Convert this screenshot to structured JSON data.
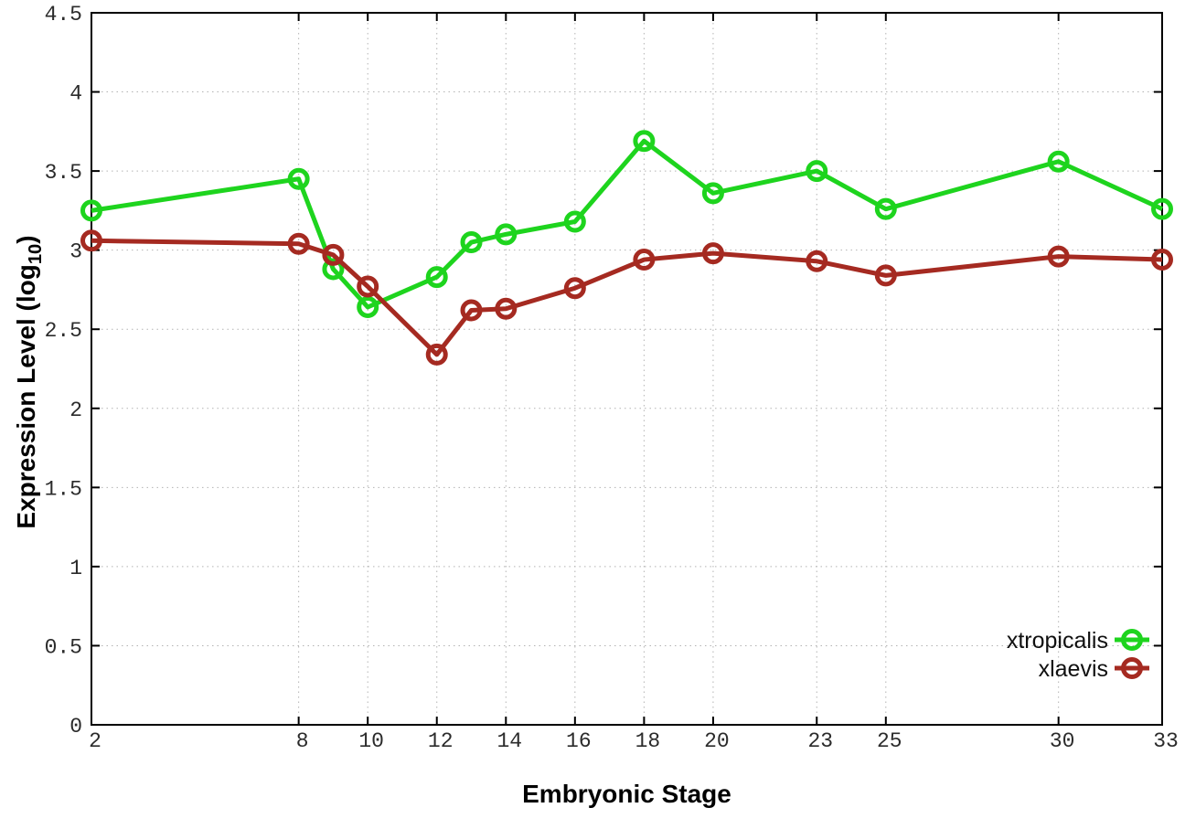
{
  "figure": {
    "background": "#ffffff"
  },
  "chart_data": {
    "type": "line",
    "title": "",
    "xlabel": "Embryonic Stage",
    "ylabel": "Expression Level (log10)",
    "ylabel_parts": {
      "prefix": "Expression Level (log",
      "subscript": "10",
      "suffix": ")"
    },
    "x": [
      2,
      8,
      9,
      10,
      12,
      13,
      14,
      16,
      18,
      20,
      23,
      25,
      30,
      33
    ],
    "series": [
      {
        "name": "xtropicalis",
        "color": "#1ed41e",
        "marker": "open-circle",
        "values": [
          3.25,
          3.45,
          2.88,
          2.64,
          2.83,
          3.05,
          3.1,
          3.18,
          3.69,
          3.36,
          3.5,
          3.26,
          3.56,
          3.26
        ]
      },
      {
        "name": "xlaevis",
        "color": "#a52a21",
        "marker": "open-circle",
        "values": [
          3.06,
          3.04,
          2.97,
          2.77,
          2.34,
          2.62,
          2.63,
          2.76,
          2.94,
          2.98,
          2.93,
          2.84,
          2.96,
          2.94
        ]
      }
    ],
    "xlim": [
      2,
      33
    ],
    "ylim": [
      0,
      4.5
    ],
    "xticks": [
      2,
      8,
      10,
      12,
      14,
      16,
      18,
      20,
      23,
      25,
      30,
      33
    ],
    "xtick_labels": [
      "2",
      "8",
      "10",
      "12",
      "14",
      "16",
      "18",
      "20",
      "23",
      "25",
      "30",
      "33"
    ],
    "yticks": [
      0,
      0.5,
      1,
      1.5,
      2,
      2.5,
      3,
      3.5,
      4,
      4.5
    ],
    "ytick_labels": [
      "0",
      "0.5",
      "1",
      "1.5",
      "2",
      "2.5",
      "3",
      "3.5",
      "4",
      "4.5"
    ],
    "grid": true,
    "grid_style": "dotted",
    "grid_color": "#b3b3b3",
    "axis_color": "#000000",
    "tick_label_color": "#2b2b2b",
    "legend_position": "bottom-right-inside",
    "legend": [
      {
        "label": "xtropicalis",
        "color": "#1ed41e"
      },
      {
        "label": "xlaevis",
        "color": "#a52a21"
      }
    ]
  }
}
